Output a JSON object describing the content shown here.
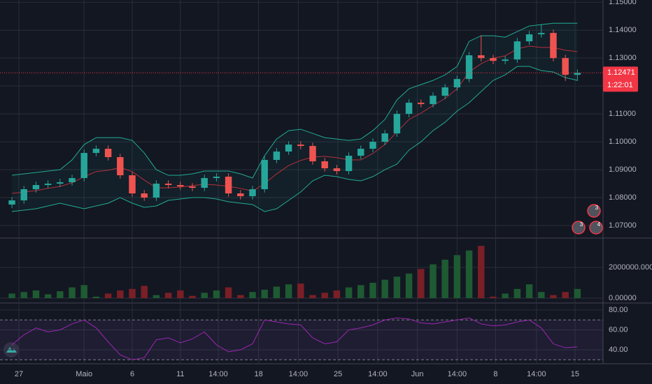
{
  "chart_data": {
    "type": "candlestick",
    "xlim": [
      -0.99,
      49.13
    ],
    "xticks": [
      {
        "value": 0.58,
        "label": "27"
      },
      {
        "value": 6,
        "label": "Maio"
      },
      {
        "value": 10,
        "label": "6"
      },
      {
        "value": 14,
        "label": "11"
      },
      {
        "value": 17.15,
        "label": "14:00"
      },
      {
        "value": 20.5,
        "label": "18"
      },
      {
        "value": 23.8,
        "label": "14:00"
      },
      {
        "value": 27.1,
        "label": "25"
      },
      {
        "value": 30.4,
        "label": "14:00"
      },
      {
        "value": 33.7,
        "label": "Jun"
      },
      {
        "value": 37,
        "label": "14:00"
      },
      {
        "value": 40.2,
        "label": "8"
      },
      {
        "value": 43.6,
        "label": "14:00"
      },
      {
        "value": 46.8,
        "label": "15"
      }
    ],
    "ylim": [
      1.06574,
      1.15081
    ],
    "yticks": [
      {
        "value": 1.07,
        "label": "1.07000"
      },
      {
        "value": 1.08,
        "label": "1.08000"
      },
      {
        "value": 1.09,
        "label": "1.09000"
      },
      {
        "value": 1.1,
        "label": "1.10000"
      },
      {
        "value": 1.11,
        "label": "1.11000"
      },
      {
        "value": 1.12,
        "label": "1.12000"
      },
      {
        "value": 1.13,
        "label": "1.13000"
      },
      {
        "value": 1.14,
        "label": "1.14000"
      },
      {
        "value": 1.15,
        "label": "1.15000"
      }
    ],
    "up_color": "#26a69a",
    "down_color": "#ef5350",
    "open": [
      1.0775,
      1.079,
      1.083,
      1.0845,
      1.085,
      1.0855,
      1.087,
      1.096,
      1.0975,
      1.0945,
      1.088,
      1.0815,
      1.08,
      1.085,
      1.0845,
      1.084,
      1.0835,
      1.087,
      1.0875,
      1.0815,
      1.0805,
      1.083,
      1.0935,
      1.0965,
      1.099,
      1.0985,
      1.093,
      1.0905,
      1.0895,
      1.095,
      1.0975,
      1.1,
      1.103,
      1.11,
      1.114,
      1.1135,
      1.1165,
      1.1195,
      1.1225,
      1.131,
      1.13,
      1.129,
      1.1295,
      1.136,
      1.1385,
      1.139,
      1.13,
      1.124
    ],
    "high": [
      1.0802,
      1.0842,
      1.0857,
      1.0862,
      1.0867,
      1.0882,
      1.0972,
      1.0987,
      1.0987,
      1.0957,
      1.0892,
      1.0827,
      1.0862,
      1.0862,
      1.0857,
      1.0852,
      1.0882,
      1.0887,
      1.0887,
      1.0827,
      1.0842,
      1.0947,
      1.0977,
      1.1002,
      1.1002,
      1.0997,
      1.0942,
      1.0917,
      1.0962,
      1.0987,
      1.1012,
      1.1042,
      1.1112,
      1.1152,
      1.1152,
      1.1177,
      1.1207,
      1.1237,
      1.1322,
      1.1382,
      1.1312,
      1.1307,
      1.1372,
      1.1397,
      1.142,
      1.1402,
      1.1312,
      1.1259
    ],
    "low": [
      1.0763,
      1.0778,
      1.0818,
      1.0833,
      1.0838,
      1.0843,
      1.0858,
      1.0948,
      1.0933,
      1.0868,
      1.0803,
      1.0788,
      1.0788,
      1.0833,
      1.0828,
      1.0823,
      1.0823,
      1.0858,
      1.0803,
      1.0793,
      1.0793,
      1.0818,
      1.0923,
      1.0953,
      1.0973,
      1.0918,
      1.0893,
      1.0883,
      1.0883,
      1.0938,
      1.0963,
      1.0988,
      1.1018,
      1.1088,
      1.1123,
      1.1123,
      1.1153,
      1.1183,
      1.1213,
      1.1288,
      1.1278,
      1.1278,
      1.1283,
      1.1348,
      1.1373,
      1.1288,
      1.1218,
      1.1218
    ],
    "close": [
      1.079,
      1.083,
      1.0845,
      1.085,
      1.0855,
      1.087,
      1.096,
      1.0975,
      1.0945,
      1.088,
      1.0815,
      1.08,
      1.085,
      1.0845,
      1.084,
      1.0835,
      1.087,
      1.0875,
      1.0815,
      1.0805,
      1.083,
      1.0935,
      1.0965,
      1.099,
      1.0985,
      1.093,
      1.0905,
      1.0895,
      1.095,
      1.0975,
      1.1,
      1.103,
      1.11,
      1.114,
      1.1135,
      1.1165,
      1.1195,
      1.1225,
      1.131,
      1.13,
      1.129,
      1.1295,
      1.136,
      1.1385,
      1.139,
      1.13,
      1.124,
      1.1247
    ],
    "bollinger": {
      "color": "#22ab94",
      "middle_color": "#b7303a",
      "fill": "rgba(34,171,148,0.06)",
      "upper": [
        1.088,
        1.0885,
        1.089,
        1.0895,
        1.09,
        1.0935,
        1.099,
        1.1015,
        1.1015,
        1.1015,
        1.1005,
        1.096,
        1.09,
        1.088,
        1.088,
        1.0885,
        1.0895,
        1.0895,
        1.0895,
        1.0885,
        1.087,
        1.095,
        1.101,
        1.104,
        1.1045,
        1.103,
        1.1015,
        1.101,
        1.1005,
        1.101,
        1.104,
        1.108,
        1.115,
        1.119,
        1.1205,
        1.122,
        1.124,
        1.127,
        1.136,
        1.138,
        1.138,
        1.1375,
        1.1395,
        1.1415,
        1.142,
        1.1425,
        1.1425,
        1.1425
      ],
      "middle": [
        1.0815,
        1.082,
        1.0825,
        1.0833,
        1.084,
        1.0853,
        1.0875,
        1.0893,
        1.0898,
        1.0908,
        1.0893,
        1.0863,
        1.0835,
        1.0835,
        1.0838,
        1.0843,
        1.0848,
        1.0845,
        1.084,
        1.0833,
        1.0823,
        1.085,
        1.0885,
        1.0915,
        1.0933,
        1.0945,
        1.0948,
        1.0943,
        1.0935,
        1.0935,
        1.0958,
        1.099,
        1.1035,
        1.108,
        1.1103,
        1.113,
        1.1155,
        1.119,
        1.125,
        1.128,
        1.13,
        1.1308,
        1.1333,
        1.1343,
        1.1338,
        1.1338,
        1.1328,
        1.1323
      ],
      "lower": [
        1.075,
        1.0755,
        1.076,
        1.077,
        1.078,
        1.077,
        1.076,
        1.077,
        1.078,
        1.08,
        1.078,
        1.0765,
        1.077,
        1.079,
        1.0795,
        1.08,
        1.08,
        1.0795,
        1.0785,
        1.078,
        1.0775,
        1.075,
        1.076,
        1.079,
        1.082,
        1.086,
        1.088,
        1.0875,
        1.0865,
        1.086,
        1.0875,
        1.09,
        1.092,
        1.097,
        1.1,
        1.104,
        1.107,
        1.111,
        1.114,
        1.118,
        1.122,
        1.124,
        1.127,
        1.127,
        1.1255,
        1.125,
        1.123,
        1.122
      ]
    },
    "last_price": 1.12471,
    "countdown": "1:22:01",
    "last_color": "#f23645",
    "events": [
      "3",
      "3",
      "4"
    ],
    "volume": {
      "ylim": [
        -270000,
        3860000
      ],
      "yticks": [
        {
          "value": 0,
          "label": "0.00000"
        },
        {
          "value": 2000000,
          "label": "2000000.00000"
        }
      ],
      "values": [
        300000,
        400000,
        500000,
        250000,
        450000,
        700000,
        850000,
        100000,
        300000,
        500000,
        600000,
        800000,
        200000,
        350000,
        500000,
        150000,
        350000,
        500000,
        700000,
        200000,
        400000,
        550000,
        750000,
        900000,
        950000,
        200000,
        350000,
        500000,
        700000,
        850000,
        1000000,
        1200000,
        1400000,
        1600000,
        1900000,
        2200000,
        2500000,
        2800000,
        3100000,
        3400000,
        100000,
        300000,
        600000,
        900000,
        400000,
        200000,
        400000,
        600000
      ],
      "up_color": "#1e5a32",
      "down_color": "#7a1f26"
    },
    "rsi": {
      "color": "#9c27b0",
      "ylim": [
        26.7,
        86.3
      ],
      "yticks": [
        {
          "value": 40,
          "label": "40.00"
        },
        {
          "value": 60,
          "label": "60.00"
        },
        {
          "value": 80,
          "label": "80.00"
        }
      ],
      "bands": [
        30,
        70
      ],
      "values": [
        45,
        55,
        62,
        58,
        60,
        66,
        70,
        62,
        48,
        35,
        30,
        32,
        50,
        52,
        47,
        51,
        58,
        45,
        38,
        40,
        46,
        70,
        68,
        66,
        65,
        52,
        46,
        48,
        60,
        62,
        65,
        70,
        72,
        71,
        67,
        66,
        68,
        70,
        72,
        66,
        64,
        65,
        68,
        70,
        62,
        46,
        42,
        43
      ]
    }
  }
}
